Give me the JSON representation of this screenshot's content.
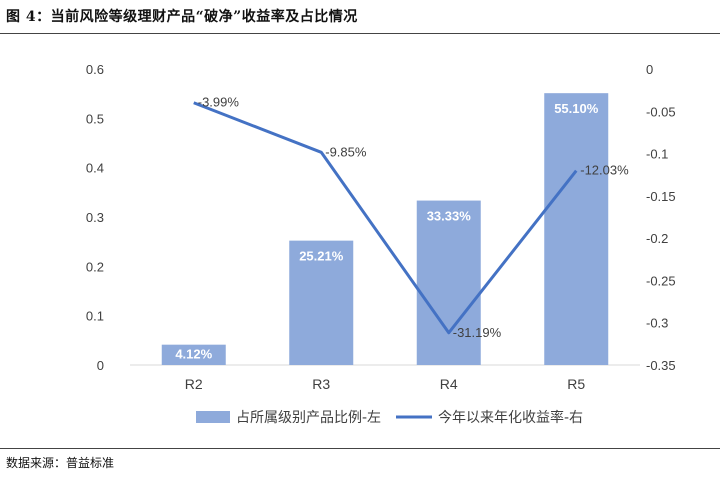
{
  "figure": {
    "title": "图 4：当前风险等级理财产品“破净”收益率及占比情况",
    "source": "数据来源：普益标准"
  },
  "colors": {
    "bar": "#8eaadb",
    "line": "#4472c4",
    "axis_text": "#404040",
    "bar_label": "#ffffff"
  },
  "chart_data": {
    "type": "bar",
    "categories": [
      "R2",
      "R3",
      "R4",
      "R5"
    ],
    "series": [
      {
        "name": "占所属级别产品比例-左",
        "type": "bar",
        "axis": "left",
        "values": [
          0.0412,
          0.2521,
          0.3333,
          0.551
        ],
        "labels": [
          "4.12%",
          "25.21%",
          "33.33%",
          "55.10%"
        ]
      },
      {
        "name": "今年以来年化收益率-右",
        "type": "line",
        "axis": "right",
        "values": [
          -0.0399,
          -0.0985,
          -0.3119,
          -0.1203
        ],
        "labels": [
          "-3.99%",
          "-9.85%",
          "-31.19%",
          "-12.03%"
        ]
      }
    ],
    "left_axis": {
      "ylim": [
        0,
        0.6
      ],
      "ticks": [
        "0",
        "0.1",
        "0.2",
        "0.3",
        "0.4",
        "0.5",
        "0.6"
      ]
    },
    "right_axis": {
      "ylim": [
        -0.35,
        0
      ],
      "ticks": [
        "0",
        "-0.05",
        "-0.1",
        "-0.15",
        "-0.2",
        "-0.25",
        "-0.3",
        "-0.35"
      ]
    },
    "legend_position": "bottom",
    "grid": false
  }
}
